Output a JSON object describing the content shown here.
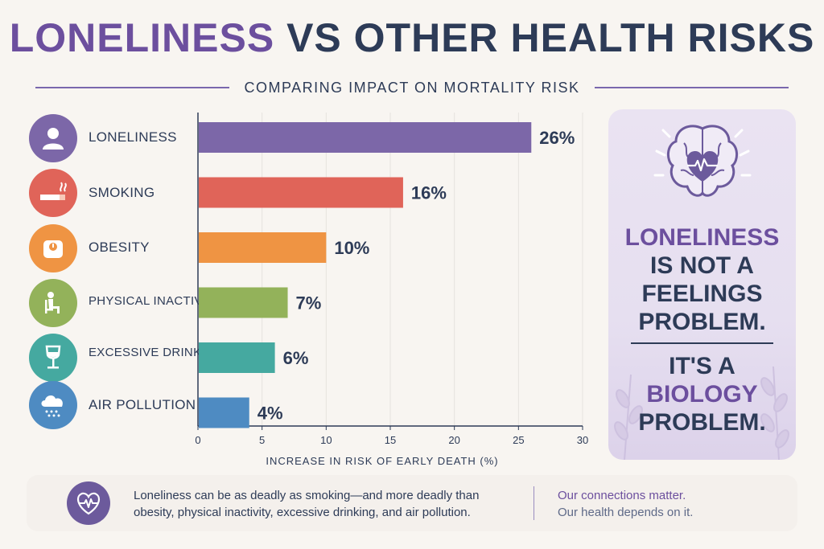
{
  "header": {
    "title_highlight": "LONELINESS",
    "title_rest": " VS OTHER HEALTH RISKS",
    "subtitle": "COMPARING IMPACT ON MORTALITY RISK"
  },
  "chart_data": {
    "type": "bar",
    "orientation": "horizontal",
    "title": "LONELINESS VS OTHER HEALTH RISKS",
    "subtitle": "COMPARING IMPACT ON MORTALITY RISK",
    "xlabel": "INCREASE IN RISK OF EARLY DEATH (%)",
    "ylabel": "",
    "xlim": [
      0,
      30
    ],
    "xticks": [
      0,
      5,
      10,
      15,
      20,
      25,
      30
    ],
    "grid": "vertical",
    "categories": [
      "LONELINESS",
      "SMOKING",
      "OBESITY",
      "PHYSICAL INACTIVITY",
      "EXCESSIVE DRINKING",
      "AIR POLLUTION"
    ],
    "values": [
      26,
      16,
      10,
      7,
      6,
      4
    ],
    "value_labels": [
      "26%",
      "16%",
      "10%",
      "7%",
      "6%",
      "4%"
    ],
    "colors": [
      "#7c67a8",
      "#e06459",
      "#ef9443",
      "#93b25a",
      "#45a9a0",
      "#4e8bc2"
    ],
    "icons": [
      "person-icon",
      "cigarette-icon",
      "scale-icon",
      "sitting-person-icon",
      "wine-glass-icon",
      "cloud-rain-icon"
    ]
  },
  "sidebar": {
    "line1_purple": "LONELINESS",
    "line2": "IS NOT A",
    "line3": "FEELINGS",
    "line4": "PROBLEM.",
    "line5": "IT'S A",
    "line6_purple": "BIOLOGY",
    "line7": "PROBLEM.",
    "icon": "brain-heart-icon"
  },
  "footer": {
    "text": "Loneliness can be as deadly as smoking—and more deadly than obesity, physical inactivity, excessive drinking, and air pollution.",
    "right_line1": "Our connections matter.",
    "right_line2": "Our health depends on it.",
    "icon": "heart-pulse-icon"
  },
  "colors": {
    "title_accent": "#6c4f9e",
    "text_dark": "#2d3b57",
    "background": "#f8f5f1"
  }
}
